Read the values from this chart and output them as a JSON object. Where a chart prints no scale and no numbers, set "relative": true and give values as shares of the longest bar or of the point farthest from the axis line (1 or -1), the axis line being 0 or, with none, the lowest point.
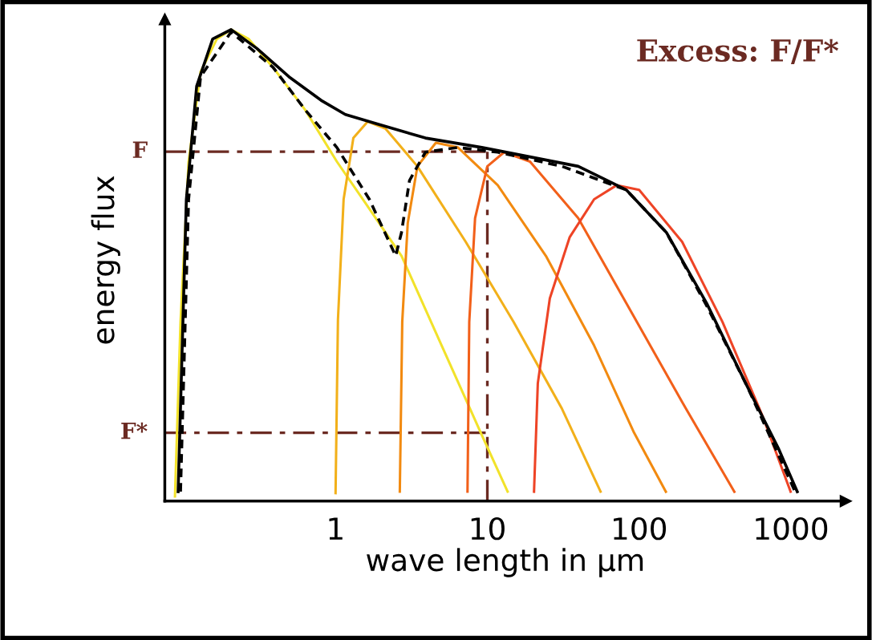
{
  "chart_data": {
    "type": "line",
    "title": "Excess: F/F*",
    "xlabel": "wave length in µm",
    "ylabel": "energy flux",
    "relative": true,
    "log": "x",
    "xlim": [
      0.075,
      2300
    ],
    "xticks": [
      1,
      10,
      100,
      1000
    ],
    "grid": false,
    "marker": "none",
    "series": [
      {
        "color": "#f2e22a",
        "x": [
          0.0875,
          0.0952,
          0.1076,
          0.129,
          0.165,
          0.205,
          0.268,
          0.387,
          0.63,
          1.02,
          1.67,
          2.72,
          5.0,
          9.2,
          13.6
        ],
        "values": [
          0.01,
          0.38,
          0.72,
          0.91,
          0.98,
          1.0,
          0.98,
          0.92,
          0.83,
          0.72,
          0.62,
          0.52,
          0.33,
          0.14,
          0.02
        ]
      },
      {
        "color": "#f2b01a",
        "x": [
          1.0,
          1.037,
          1.13,
          1.31,
          1.63,
          2.13,
          3.46,
          7.2,
          14.9,
          31,
          55.7
        ],
        "values": [
          0.017,
          0.385,
          0.64,
          0.77,
          0.805,
          0.79,
          0.71,
          0.55,
          0.38,
          0.196,
          0.02
        ]
      },
      {
        "color": "#f28a10",
        "x": [
          2.65,
          2.75,
          2.99,
          3.46,
          4.58,
          6.4,
          11.7,
          24.3,
          50.5,
          92.6,
          150
        ],
        "values": [
          0.02,
          0.38,
          0.59,
          0.71,
          0.76,
          0.75,
          0.67,
          0.52,
          0.33,
          0.145,
          0.02
        ]
      },
      {
        "color": "#f2601a",
        "x": [
          7.4,
          7.6,
          8.3,
          10,
          12.9,
          19.1,
          39.7,
          82.3,
          192,
          424
        ],
        "values": [
          0.02,
          0.38,
          0.6,
          0.71,
          0.74,
          0.72,
          0.6,
          0.42,
          0.21,
          0.02
        ]
      },
      {
        "color": "#ee4426",
        "x": [
          20.3,
          21.5,
          25.8,
          34.9,
          50.5,
          71.2,
          100,
          192,
          354,
          651,
          995
        ],
        "values": [
          0.02,
          0.25,
          0.43,
          0.56,
          0.64,
          0.67,
          0.66,
          0.55,
          0.38,
          0.18,
          0.02
        ]
      },
      {
        "color": "#000000",
        "x": [
          0.0918,
          0.104,
          0.1216,
          0.155,
          0.205,
          0.303,
          0.493,
          0.803,
          1.16,
          1.88,
          3.91,
          9.2,
          19.1,
          39.7,
          82.3,
          151,
          278,
          512,
          832,
          1101
        ],
        "values": [
          0.02,
          0.64,
          0.88,
          0.98,
          1.0,
          0.96,
          0.9,
          0.85,
          0.82,
          0.8,
          0.77,
          0.75,
          0.73,
          0.71,
          0.66,
          0.57,
          0.42,
          0.245,
          0.11,
          0.02
        ]
      },
      {
        "color": "#000000",
        "line_style": "dashed",
        "x": [
          0.0952,
          0.1076,
          0.129,
          0.205,
          0.387,
          0.63,
          1.02,
          1.67,
          2.49,
          2.72,
          3.07,
          3.91,
          6.37,
          11.7,
          31,
          82.3,
          151,
          278,
          512,
          1066
        ],
        "values": [
          0.02,
          0.64,
          0.9,
          0.995,
          0.92,
          0.83,
          0.75,
          0.64,
          0.52,
          0.57,
          0.68,
          0.74,
          0.75,
          0.74,
          0.71,
          0.66,
          0.57,
          0.415,
          0.245,
          0.02
        ]
      }
    ],
    "ref_lines": [
      {
        "axis": "y",
        "value": 0.741,
        "label": "F",
        "color": "#6b2a22",
        "line_style": "dashdot"
      },
      {
        "axis": "y",
        "value": 0.145,
        "label": "F*",
        "color": "#6b2a22",
        "line_style": "dashdot"
      },
      {
        "axis": "x",
        "value": 10,
        "label": null,
        "color": "#6b2a22",
        "line_style": "dashdot"
      }
    ]
  }
}
